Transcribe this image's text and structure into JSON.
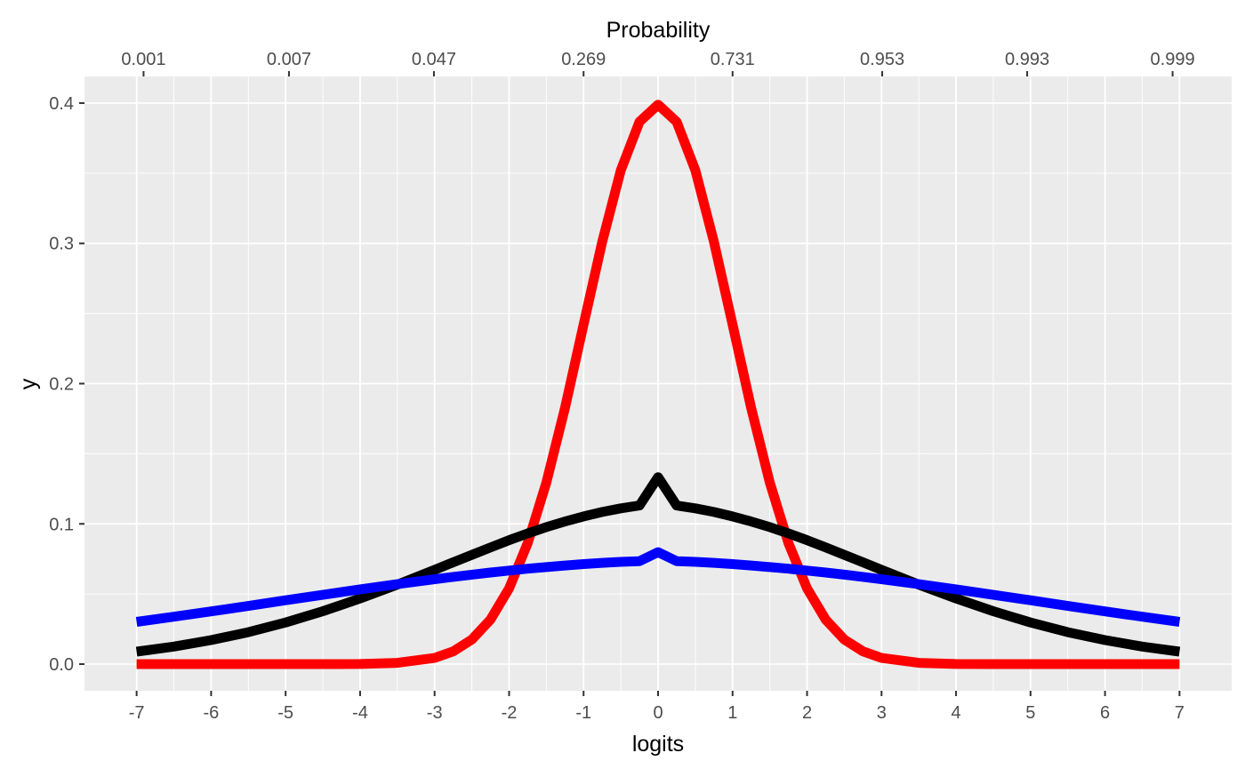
{
  "chart_data": {
    "type": "line",
    "title": "",
    "xlabel": "logits",
    "ylabel": "y",
    "secondary_xlabel": "Probability",
    "xlim": [
      -7.7,
      7.7
    ],
    "ylim": [
      -0.019,
      0.419
    ],
    "x_ticks": [
      -7,
      -6,
      -5,
      -4,
      -3,
      -2,
      -1,
      0,
      1,
      2,
      3,
      4,
      5,
      6,
      7
    ],
    "x_tick_labels": [
      "-7",
      "-6",
      "-5",
      "-4",
      "-3",
      "-2",
      "-1",
      "0",
      "1",
      "2",
      "3",
      "4",
      "5",
      "6",
      "7"
    ],
    "y_ticks": [
      0,
      0.1,
      0.2,
      0.3,
      0.4
    ],
    "y_tick_labels": [
      "0.0",
      "0.1",
      "0.2",
      "0.3",
      "0.4"
    ],
    "secondary_x_ticks": [
      -6.907,
      -4.955,
      -3.009,
      -1.0,
      1.0,
      3.009,
      4.955,
      6.907
    ],
    "secondary_x_tick_labels": [
      "0.001",
      "0.007",
      "0.047",
      "0.269",
      "0.731",
      "0.953",
      "0.993",
      "0.999"
    ],
    "grid": true,
    "background": "#ebebeb",
    "x": [
      -7,
      -6.5,
      -6,
      -5.5,
      -5,
      -4.5,
      -4,
      -3.5,
      -3,
      -2.75,
      -2.5,
      -2.25,
      -2,
      -1.75,
      -1.5,
      -1.25,
      -1,
      -0.75,
      -0.5,
      -0.25,
      0,
      0.25,
      0.5,
      0.75,
      1,
      1.25,
      1.5,
      1.75,
      2,
      2.25,
      2.5,
      2.75,
      3,
      3.5,
      4,
      4.5,
      5,
      5.5,
      6,
      6.5,
      7
    ],
    "series": [
      {
        "color": "#ff0000",
        "values": [
          0,
          0,
          0,
          0,
          0,
          0,
          0.0001,
          0.0009,
          0.0044,
          0.0091,
          0.0175,
          0.0317,
          0.054,
          0.0863,
          0.1295,
          0.1826,
          0.242,
          0.3011,
          0.3521,
          0.3867,
          0.3989,
          0.3867,
          0.3521,
          0.3011,
          0.242,
          0.1826,
          0.1295,
          0.0863,
          0.054,
          0.0317,
          0.0175,
          0.0091,
          0.0044,
          0.0009,
          0.0001,
          0,
          0,
          0,
          0,
          0,
          0
        ]
      },
      {
        "color": "#000000",
        "values": [
          0.0089,
          0.0125,
          0.0171,
          0.0228,
          0.0297,
          0.0377,
          0.0468,
          0.0567,
          0.0672,
          0.0726,
          0.0779,
          0.0832,
          0.0884,
          0.0932,
          0.0977,
          0.1017,
          0.1053,
          0.1085,
          0.1111,
          0.1131,
          0.1333,
          0.1131,
          0.1111,
          0.1085,
          0.1053,
          0.1017,
          0.0977,
          0.0932,
          0.0884,
          0.0832,
          0.0779,
          0.0726,
          0.0672,
          0.0567,
          0.0468,
          0.0377,
          0.0297,
          0.0228,
          0.0171,
          0.0125,
          0.0089
        ]
      },
      {
        "color": "#0000ff",
        "values": [
          0.0301,
          0.0338,
          0.0376,
          0.0415,
          0.0455,
          0.0494,
          0.0533,
          0.057,
          0.0605,
          0.0622,
          0.0638,
          0.0653,
          0.0667,
          0.068,
          0.0692,
          0.0703,
          0.0713,
          0.0722,
          0.0729,
          0.0734,
          0.0798,
          0.0734,
          0.0729,
          0.0722,
          0.0713,
          0.0703,
          0.0692,
          0.068,
          0.0667,
          0.0653,
          0.0638,
          0.0622,
          0.0605,
          0.057,
          0.0533,
          0.0494,
          0.0455,
          0.0415,
          0.0376,
          0.0338,
          0.0301
        ]
      }
    ]
  }
}
